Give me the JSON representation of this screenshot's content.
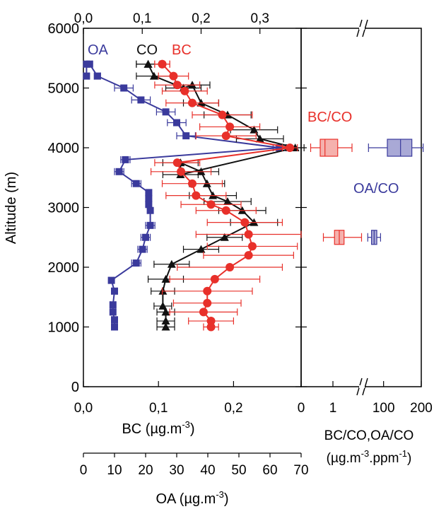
{
  "chart_data": [
    {
      "panel": "left",
      "type": "line",
      "ylabel": "Altitude (m)",
      "xlabel_bottom": "BC (µg.m",
      "xlabel_bottom_sup": "-3",
      "xlabel_bottom_end": ")",
      "xlabel_oa": "OA (µg.m",
      "xlabel_oa_sup": "-3",
      "xlabel_oa_end": ")",
      "ylim": [
        0,
        6000
      ],
      "yticks": [
        "0",
        "1000",
        "2000",
        "3000",
        "4000",
        "5000",
        "6000"
      ],
      "bc_axis": {
        "xlim": [
          0,
          0.29
        ],
        "ticks": [
          "0,0",
          "0,1",
          "0,2"
        ]
      },
      "co_axis": {
        "xlim": [
          0,
          0.37
        ],
        "ticks": [
          "0,0",
          "0,1",
          "0,2",
          "0,3"
        ]
      },
      "oa_axis": {
        "xlim": [
          0,
          70
        ],
        "ticks": [
          "0",
          "10",
          "20",
          "30",
          "40",
          "50",
          "60",
          "70"
        ]
      },
      "series": [
        {
          "name": "OA",
          "axis": "oa",
          "color": "#3a3a9c",
          "marker": "square",
          "x": [
            10.0,
            10.0,
            9.5,
            9.5,
            10.0,
            9.0,
            17.0,
            19.0,
            20.0,
            21.5,
            21.5,
            21.0,
            21.0,
            21.0,
            17.0,
            11.5,
            13.5,
            63.0,
            33.0,
            30.0,
            26.5,
            18.5,
            13.0,
            4.5,
            2.0,
            1.0,
            1.0
          ],
          "y": [
            1000,
            1120,
            1250,
            1370,
            1600,
            1780,
            2070,
            2300,
            2500,
            2700,
            2950,
            3050,
            3150,
            3250,
            3400,
            3600,
            3800,
            4000,
            4200,
            4420,
            4600,
            4800,
            5000,
            5200,
            5400,
            5400,
            5200
          ],
          "err": [
            0.8,
            0.8,
            0.8,
            0.8,
            0.8,
            0.8,
            1.5,
            1.5,
            1.5,
            1.5,
            0,
            0,
            0,
            0,
            1.5,
            1.5,
            1.5,
            2,
            3,
            3,
            3,
            3,
            3,
            1,
            0.8,
            0.8,
            0.8
          ]
        },
        {
          "name": "CO",
          "axis": "co",
          "color": "#111111",
          "marker": "triangle",
          "x": [
            0.14,
            0.14,
            0.14,
            0.135,
            0.135,
            0.14,
            0.15,
            0.2,
            0.24,
            0.29,
            0.27,
            0.245,
            0.22,
            0.21,
            0.2,
            0.165,
            0.165,
            0.36,
            0.3,
            0.29,
            0.245,
            0.2,
            0.185,
            0.17,
            0.12,
            0.11,
            0.11
          ],
          "y": [
            1000,
            1100,
            1250,
            1350,
            1600,
            1800,
            2050,
            2300,
            2500,
            2750,
            2950,
            3100,
            3200,
            3400,
            3600,
            3750,
            3550,
            4000,
            4150,
            4300,
            4550,
            4750,
            5050,
            5000,
            5200,
            5400,
            5400
          ],
          "err": [
            0.015,
            0.015,
            0.015,
            0.015,
            0.02,
            0.03,
            0.03,
            0.03,
            0.03,
            0.04,
            0.04,
            0.04,
            0.04,
            0.03,
            0.03,
            0.03,
            0.03,
            0.015,
            0.04,
            0.04,
            0.04,
            0.03,
            0.03,
            0.03,
            0.03,
            0.02,
            0.02
          ]
        },
        {
          "name": "BC",
          "axis": "bc",
          "color": "#e8302a",
          "marker": "circle",
          "x": [
            0.17,
            0.17,
            0.16,
            0.165,
            0.165,
            0.175,
            0.195,
            0.22,
            0.225,
            0.22,
            0.215,
            0.19,
            0.17,
            0.15,
            0.145,
            0.13,
            0.125,
            0.275,
            0.19,
            0.195,
            0.185,
            0.145,
            0.135,
            0.125,
            0.12,
            0.105,
            0.105
          ],
          "y": [
            1000,
            1100,
            1250,
            1400,
            1600,
            1800,
            2000,
            2200,
            2350,
            2550,
            2750,
            2950,
            3050,
            3200,
            3400,
            3600,
            3750,
            4000,
            4200,
            4350,
            4550,
            4750,
            4950,
            5050,
            5200,
            5400,
            5400
          ],
          "err": [
            0.01,
            0.03,
            0.045,
            0.045,
            0.06,
            0.06,
            0.07,
            0.06,
            0.06,
            0.07,
            0.05,
            0.04,
            0.04,
            0.04,
            0.04,
            0.04,
            0.03,
            0.01,
            0.04,
            0.04,
            0.04,
            0.035,
            0.03,
            0.03,
            0.02,
            0.01,
            0.01
          ]
        }
      ],
      "series_labels": [
        "OA",
        "CO",
        "BC"
      ]
    },
    {
      "panel": "right",
      "type": "box",
      "xlabel_line1": "BC/CO,OA/CO",
      "xlabel_line2_a": "(µg.m",
      "xlabel_line2_sup1": "-3",
      "xlabel_line2_b": ".ppm",
      "xlabel_line2_sup2": "-1",
      "xlabel_line2_c": ")",
      "xticks": [
        "0",
        "1",
        "100",
        "200"
      ],
      "annotations": [
        "BC/CO",
        "OA/CO"
      ],
      "boxes": [
        {
          "name": "BC/CO",
          "altitude": 4000,
          "color": "#e8302a",
          "whisker": [
            0.3,
            1.6
          ],
          "box": [
            0.6,
            1.15
          ],
          "median": 0.75
        },
        {
          "name": "OA/CO",
          "altitude": 4000,
          "color": "#3a3a9c",
          "whisker": [
            60,
            205
          ],
          "box": [
            110,
            175
          ],
          "median": 145
        },
        {
          "name": "BC/CO",
          "altitude": 2500,
          "color": "#e8302a",
          "whisker": [
            0.7,
            1.9
          ],
          "box": [
            1.05,
            1.35
          ],
          "median": 1.2
        },
        {
          "name": "OA/CO",
          "altitude": 2500,
          "color": "#3a3a9c",
          "whisker": [
            58,
            92
          ],
          "box": [
            68,
            82
          ],
          "median": 75
        }
      ]
    }
  ]
}
